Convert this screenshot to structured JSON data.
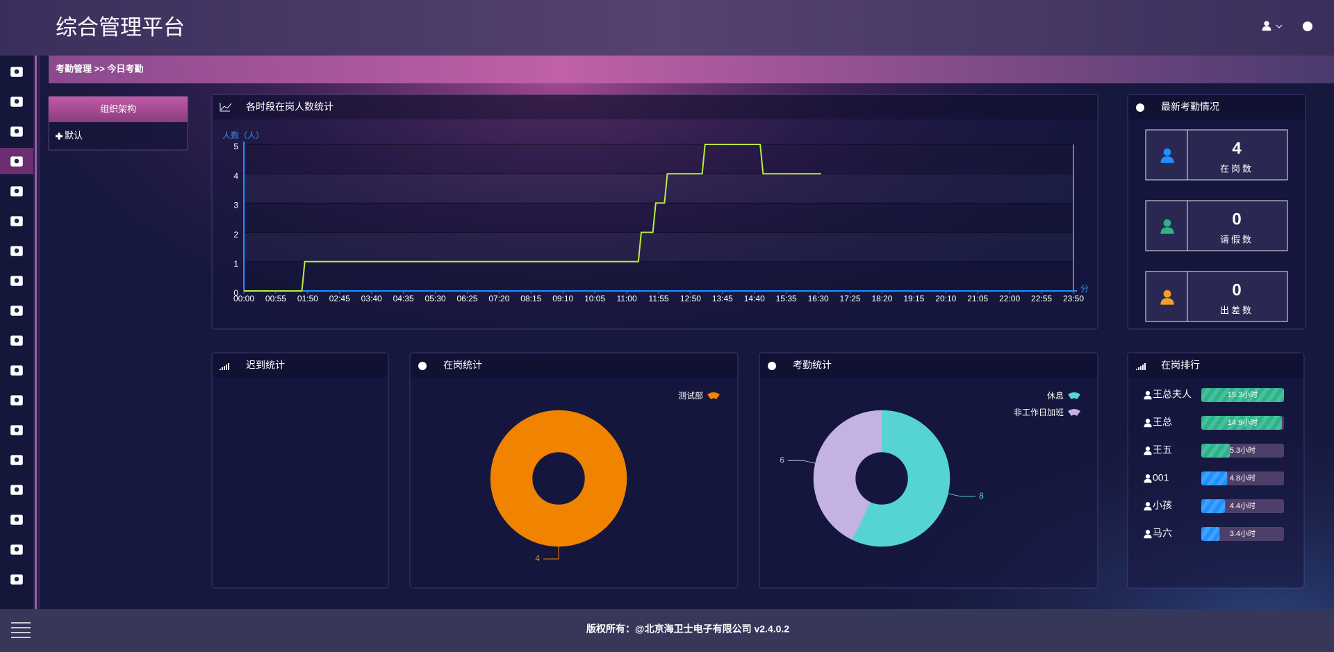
{
  "header": {
    "title": "综合管理平台"
  },
  "breadcrumb": "考勤管理 >> 今日考勤",
  "org_panel": {
    "title": "组织架构",
    "items": [
      "默认"
    ]
  },
  "late_panel": {
    "title": "迟到统计"
  },
  "stats_panel": {
    "title": "最新考勤情况",
    "cards": [
      {
        "value": 4,
        "label": "在岗数",
        "color": "#1e90ff"
      },
      {
        "value": 0,
        "label": "请假数",
        "color": "#2bb38a"
      },
      {
        "value": 0,
        "label": "出差数",
        "color": "#f0a030"
      }
    ]
  },
  "chart_data": [
    {
      "type": "line",
      "title": "各时段在岗人数统计",
      "ylabel": "人数（人）",
      "xlabel": "分",
      "x": [
        0,
        100,
        105,
        680,
        685,
        705,
        710,
        725,
        730,
        790,
        795,
        890,
        895,
        995
      ],
      "series": [
        {
          "color": "#b8ee3c",
          "values": [
            0,
            0,
            1,
            1,
            2,
            2,
            3,
            3,
            4,
            4,
            5,
            5,
            4,
            4
          ]
        }
      ],
      "xlim": [
        0,
        1430
      ],
      "xticks": [
        {
          "value": 0,
          "label": "00:00"
        },
        {
          "value": 55,
          "label": "00:55"
        },
        {
          "value": 110,
          "label": "01:50"
        },
        {
          "value": 165,
          "label": "02:45"
        },
        {
          "value": 220,
          "label": "03:40"
        },
        {
          "value": 275,
          "label": "04:35"
        },
        {
          "value": 330,
          "label": "05:30"
        },
        {
          "value": 385,
          "label": "06:25"
        },
        {
          "value": 440,
          "label": "07:20"
        },
        {
          "value": 495,
          "label": "08:15"
        },
        {
          "value": 550,
          "label": "09:10"
        },
        {
          "value": 605,
          "label": "10:05"
        },
        {
          "value": 660,
          "label": "11:00"
        },
        {
          "value": 715,
          "label": "11:55"
        },
        {
          "value": 770,
          "label": "12:50"
        },
        {
          "value": 825,
          "label": "13:45"
        },
        {
          "value": 880,
          "label": "14:40"
        },
        {
          "value": 935,
          "label": "15:35"
        },
        {
          "value": 990,
          "label": "16:30"
        },
        {
          "value": 1045,
          "label": "17:25"
        },
        {
          "value": 1100,
          "label": "18:20"
        },
        {
          "value": 1155,
          "label": "19:15"
        },
        {
          "value": 1210,
          "label": "20:10"
        },
        {
          "value": 1265,
          "label": "21:05"
        },
        {
          "value": 1320,
          "label": "22:00"
        },
        {
          "value": 1375,
          "label": "22:55"
        },
        {
          "value": 1430,
          "label": "23:50"
        }
      ],
      "ylim": [
        0,
        5
      ],
      "yticks": [
        0,
        1,
        2,
        3,
        4,
        5
      ],
      "grid": true
    },
    {
      "type": "pie",
      "donut": true,
      "title": "在岗统计",
      "categories": [
        "测试部"
      ],
      "values": [
        4
      ],
      "colors": [
        "#f08300"
      ],
      "legend": "top-right"
    },
    {
      "type": "pie",
      "donut": true,
      "title": "考勤统计",
      "categories": [
        "休息",
        "非工作日加班"
      ],
      "values": [
        8,
        6
      ],
      "colors": [
        "#56d4d4",
        "#c4b2e3"
      ],
      "legend": "top-right"
    },
    {
      "type": "bar",
      "orientation": "horizontal",
      "title": "在岗排行",
      "categories": [
        "王总夫人",
        "王总",
        "王五",
        "001",
        "小孩",
        "马六"
      ],
      "values": [
        15.3,
        14.9,
        5.3,
        4.8,
        4.4,
        3.4
      ],
      "value_labels": [
        "15.3小时",
        "14.9小时",
        "5.3小时",
        "4.8小时",
        "4.4小时",
        "3.4小时"
      ],
      "colors": [
        "#2bb38a",
        "#2bb38a",
        "#2bb38a",
        "#1e90ff",
        "#1e90ff",
        "#1e90ff"
      ]
    }
  ],
  "footer": "版权所有：@北京海卫士电子有限公司 v2.4.0.2"
}
